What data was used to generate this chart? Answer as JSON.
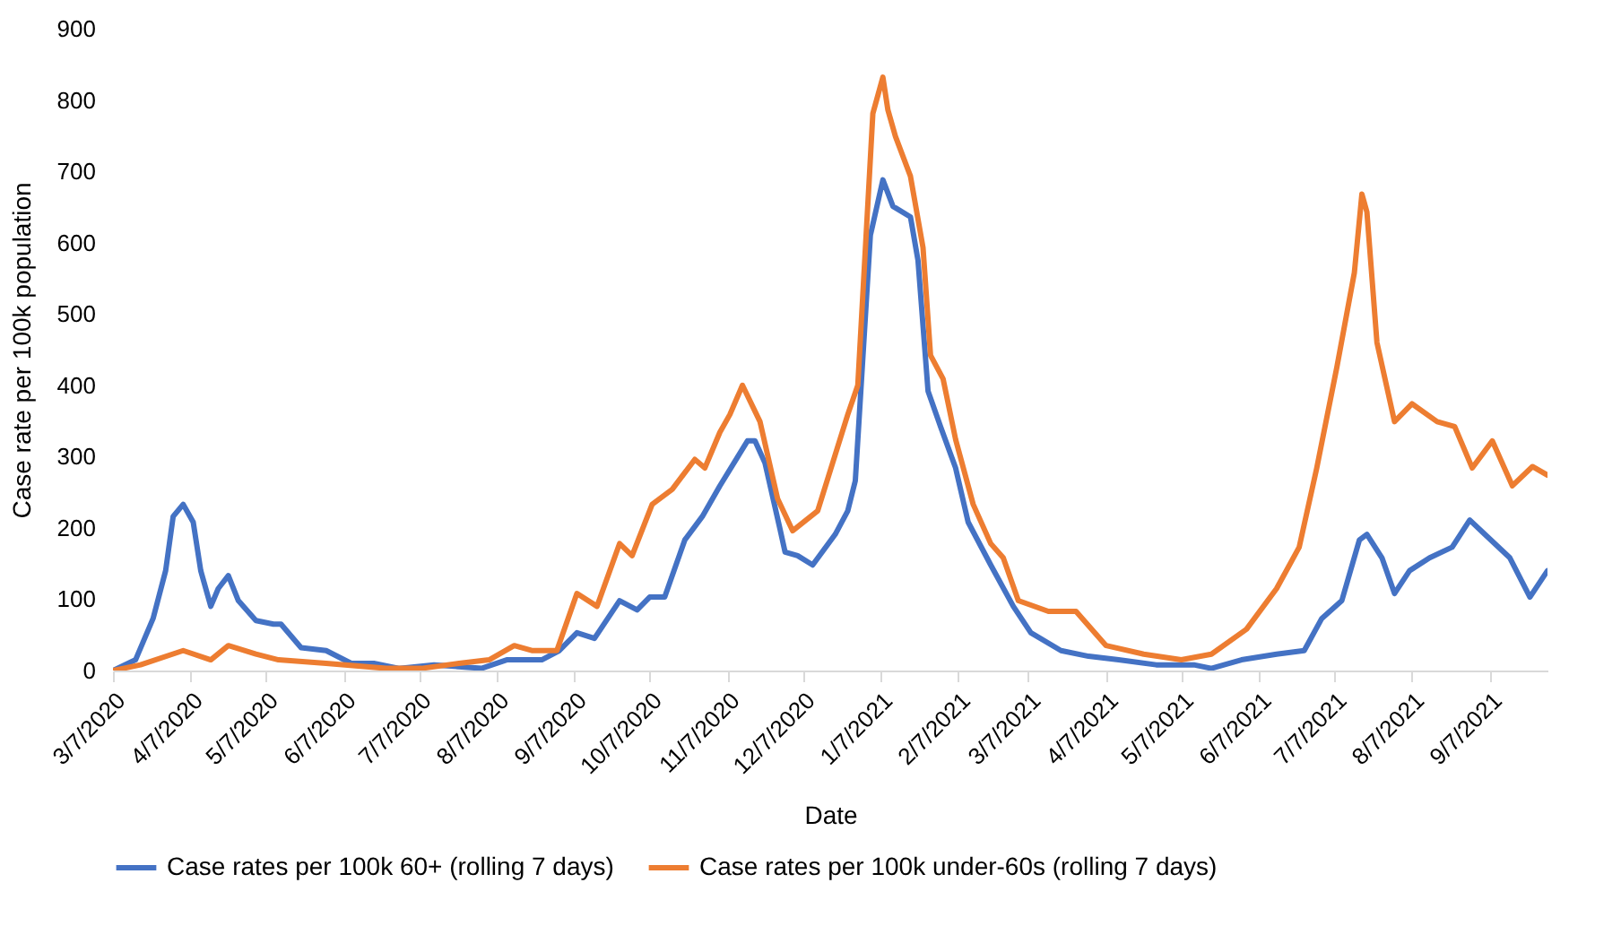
{
  "chart_data": {
    "type": "line",
    "xlabel": "Date",
    "ylabel": "Case rate per 100k population",
    "xlim": [
      "2020-03-07",
      "2021-09-30"
    ],
    "xticks": [
      {
        "value": "2020-03-07",
        "label": "3/7/2020"
      },
      {
        "value": "2020-04-07",
        "label": "4/7/2020"
      },
      {
        "value": "2020-05-07",
        "label": "5/7/2020"
      },
      {
        "value": "2020-06-07",
        "label": "6/7/2020"
      },
      {
        "value": "2020-07-07",
        "label": "7/7/2020"
      },
      {
        "value": "2020-08-07",
        "label": "8/7/2020"
      },
      {
        "value": "2020-09-07",
        "label": "9/7/2020"
      },
      {
        "value": "2020-10-07",
        "label": "10/7/2020"
      },
      {
        "value": "2020-11-07",
        "label": "11/7/2020"
      },
      {
        "value": "2020-12-07",
        "label": "12/7/2020"
      },
      {
        "value": "2021-01-07",
        "label": "1/7/2021"
      },
      {
        "value": "2021-02-07",
        "label": "2/7/2021"
      },
      {
        "value": "2021-03-07",
        "label": "3/7/2021"
      },
      {
        "value": "2021-04-07",
        "label": "4/7/2021"
      },
      {
        "value": "2021-05-07",
        "label": "5/7/2021"
      },
      {
        "value": "2021-06-07",
        "label": "6/7/2021"
      },
      {
        "value": "2021-07-07",
        "label": "7/7/2021"
      },
      {
        "value": "2021-08-07",
        "label": "8/7/2021"
      },
      {
        "value": "2021-09-07",
        "label": "9/7/2021"
      }
    ],
    "ylim": [
      0,
      900
    ],
    "yticks": [
      0,
      100,
      200,
      300,
      400,
      500,
      600,
      700,
      800,
      900
    ],
    "legend": "bottom",
    "series": [
      {
        "name": "Case rates per 100k 60+ (rolling 7 days)",
        "color": "#4472c4",
        "x": [
          "2020-03-07",
          "2020-03-16",
          "2020-03-23",
          "2020-03-28",
          "2020-03-31",
          "2020-04-04",
          "2020-04-08",
          "2020-04-11",
          "2020-04-15",
          "2020-04-18",
          "2020-04-22",
          "2020-04-26",
          "2020-05-03",
          "2020-05-10",
          "2020-05-13",
          "2020-05-21",
          "2020-05-31",
          "2020-06-10",
          "2020-06-19",
          "2020-06-29",
          "2020-07-13",
          "2020-08-01",
          "2020-08-11",
          "2020-08-25",
          "2020-09-01",
          "2020-09-08",
          "2020-09-15",
          "2020-09-25",
          "2020-10-02",
          "2020-10-07",
          "2020-10-13",
          "2020-10-21",
          "2020-10-28",
          "2020-11-04",
          "2020-11-11",
          "2020-11-15",
          "2020-11-18",
          "2020-11-22",
          "2020-11-28",
          "2020-11-30",
          "2020-12-05",
          "2020-12-11",
          "2020-12-20",
          "2020-12-25",
          "2020-12-28",
          "2021-01-03",
          "2021-01-08",
          "2021-01-12",
          "2021-01-19",
          "2021-01-22",
          "2021-01-26",
          "2021-01-31",
          "2021-02-06",
          "2021-02-11",
          "2021-02-20",
          "2021-03-01",
          "2021-03-08",
          "2021-03-20",
          "2021-03-31",
          "2021-04-12",
          "2021-04-27",
          "2021-05-12",
          "2021-05-19",
          "2021-05-31",
          "2021-06-14",
          "2021-06-25",
          "2021-07-02",
          "2021-07-10",
          "2021-07-17",
          "2021-07-20",
          "2021-07-26",
          "2021-07-31",
          "2021-08-06",
          "2021-08-14",
          "2021-08-23",
          "2021-08-30",
          "2021-09-05",
          "2021-09-15",
          "2021-09-23",
          "2021-09-30"
        ],
        "values": [
          0,
          15,
          73,
          140,
          216,
          233,
          208,
          140,
          90,
          115,
          133,
          98,
          70,
          65,
          65,
          32,
          28,
          10,
          10,
          3,
          8,
          3,
          15,
          15,
          28,
          53,
          45,
          98,
          85,
          103,
          103,
          183,
          216,
          259,
          299,
          322,
          322,
          291,
          198,
          166,
          161,
          148,
          191,
          224,
          266,
          610,
          688,
          651,
          636,
          575,
          392,
          342,
          284,
          208,
          148,
          90,
          53,
          28,
          20,
          15,
          8,
          8,
          3,
          15,
          23,
          28,
          73,
          98,
          183,
          191,
          158,
          108,
          140,
          158,
          173,
          211,
          191,
          158,
          103,
          140
        ]
      },
      {
        "name": "Case rates per 100k under-60s (rolling 7 days)",
        "color": "#ed7d31",
        "x": [
          "2020-03-07",
          "2020-03-18",
          "2020-04-04",
          "2020-04-15",
          "2020-04-22",
          "2020-05-03",
          "2020-05-12",
          "2020-05-31",
          "2020-06-24",
          "2020-07-08",
          "2020-07-23",
          "2020-08-04",
          "2020-08-14",
          "2020-08-21",
          "2020-08-31",
          "2020-09-08",
          "2020-09-16",
          "2020-09-25",
          "2020-09-30",
          "2020-10-08",
          "2020-10-16",
          "2020-10-25",
          "2020-10-29",
          "2020-11-04",
          "2020-11-08",
          "2020-11-13",
          "2020-11-20",
          "2020-11-27",
          "2020-12-03",
          "2020-12-13",
          "2020-12-25",
          "2020-12-29",
          "2021-01-04",
          "2021-01-08",
          "2021-01-10",
          "2021-01-13",
          "2021-01-19",
          "2021-01-24",
          "2021-01-27",
          "2021-02-01",
          "2021-02-06",
          "2021-02-13",
          "2021-02-20",
          "2021-02-25",
          "2021-03-03",
          "2021-03-15",
          "2021-03-26",
          "2021-04-07",
          "2021-04-22",
          "2021-05-07",
          "2021-05-19",
          "2021-06-02",
          "2021-06-14",
          "2021-06-23",
          "2021-06-30",
          "2021-07-08",
          "2021-07-15",
          "2021-07-18",
          "2021-07-20",
          "2021-07-24",
          "2021-07-31",
          "2021-08-07",
          "2021-08-17",
          "2021-08-24",
          "2021-08-31",
          "2021-09-08",
          "2021-09-16",
          "2021-09-24",
          "2021-09-30"
        ],
        "values": [
          0,
          8,
          28,
          15,
          35,
          23,
          15,
          10,
          3,
          3,
          10,
          15,
          35,
          28,
          28,
          108,
          90,
          178,
          161,
          233,
          254,
          296,
          284,
          334,
          359,
          400,
          349,
          241,
          196,
          224,
          359,
          400,
          781,
          832,
          786,
          749,
          693,
          593,
          442,
          409,
          324,
          233,
          178,
          158,
          98,
          83,
          83,
          35,
          23,
          15,
          23,
          58,
          115,
          173,
          284,
          425,
          558,
          668,
          643,
          460,
          349,
          374,
          349,
          342,
          284,
          322,
          259,
          286,
          274
        ]
      }
    ]
  }
}
